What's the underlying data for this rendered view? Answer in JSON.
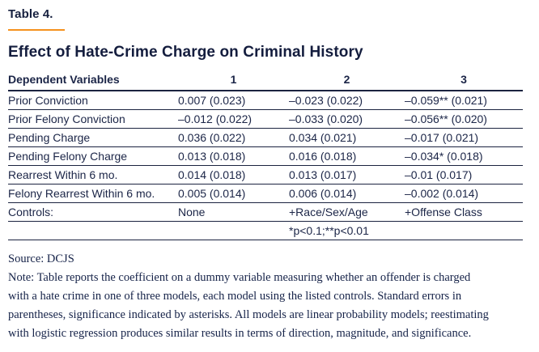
{
  "page": {
    "eyebrow": "Table 4.",
    "title": "Effect of Hate-Crime Charge on Criminal History",
    "accent_color": "#F5911E",
    "text_color": "#1B2547"
  },
  "table": {
    "columns": [
      "Dependent Variables",
      "1",
      "2",
      "3"
    ],
    "rows": [
      [
        "Prior Conviction",
        "0.007 (0.023)",
        "–0.023 (0.022)",
        "–0.059** (0.021)"
      ],
      [
        "Prior Felony Conviction",
        "–0.012 (0.022)",
        "–0.033 (0.020)",
        "–0.056** (0.020)"
      ],
      [
        "Pending Charge",
        "0.036 (0.022)",
        "0.034 (0.021)",
        "–0.017 (0.021)"
      ],
      [
        "Pending Felony Charge",
        "0.013 (0.018)",
        "0.016 (0.018)",
        "–0.034* (0.018)"
      ],
      [
        "Rearrest Within 6 mo.",
        "0.014 (0.018)",
        "0.013 (0.017)",
        "–0.01 (0.017)"
      ],
      [
        "Felony Rearrest Within 6 mo.",
        "0.005 (0.014)",
        "0.006 (0.014)",
        "–0.002 (0.014)"
      ],
      [
        "Controls:",
        "None",
        "+Race/Sex/Age",
        "+Offense Class"
      ],
      [
        "",
        "",
        "*p<0.1;**p<0.01",
        ""
      ]
    ]
  },
  "footer": {
    "source": "Source: DCJS",
    "note_lines": [
      "Note: Table reports the coefficient on a dummy variable measuring whether an offender is charged",
      "with a hate crime in one of three models, each model using the listed controls. Standard errors in",
      "parentheses, significance indicated by asterisks. All models are linear probability models; reestimating",
      "with logistic regression produces similar results in terms of direction, magnitude, and significance."
    ]
  }
}
